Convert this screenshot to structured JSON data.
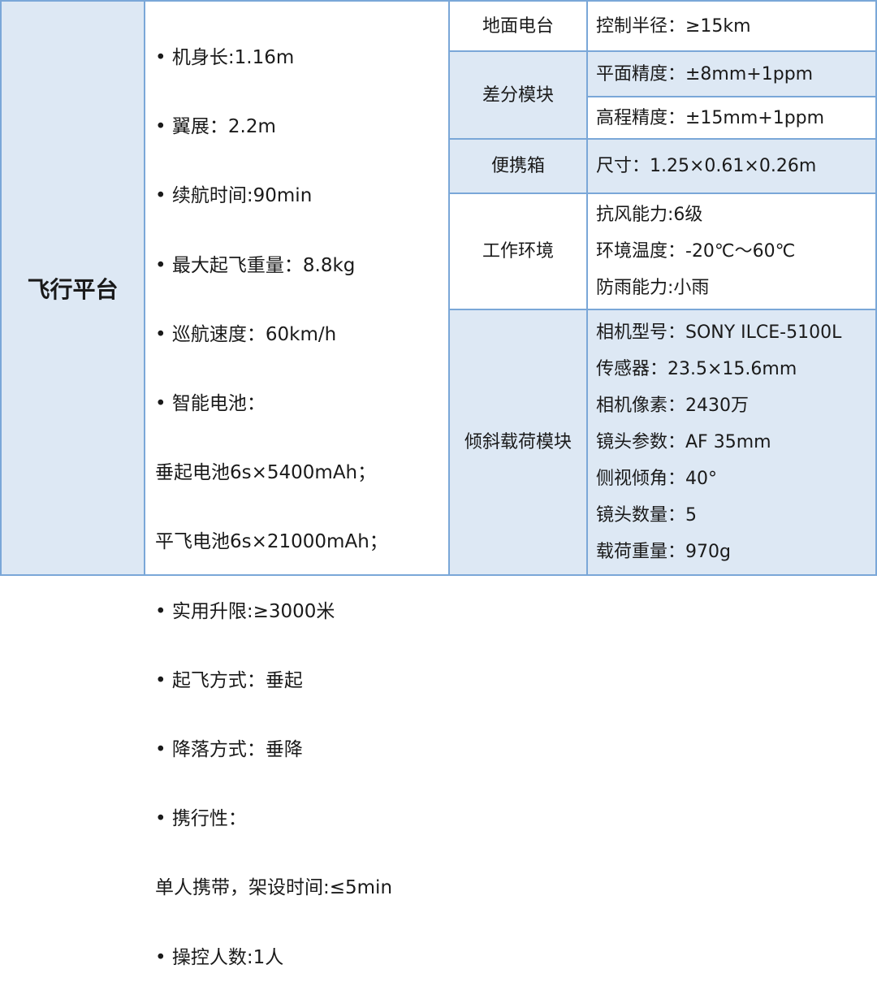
{
  "flight_platform": {
    "label": "飞行平台",
    "items": [
      "• 机身长:1.16m",
      "• 翼展：2.2m",
      "• 续航时间:90min",
      "• 最大起飞重量：8.8kg",
      "• 巡航速度：60km/h",
      "• 智能电池：",
      "  垂起电池6s×5400mAh；",
      "  平飞电池6s×21000mAh；",
      "• 实用升限:≥3000米",
      "• 起飞方式：垂起",
      "• 降落方式：垂降",
      "• 携行性：",
      "   单人携带，架设时间:≤5min",
      "• 操控人数:1人"
    ]
  },
  "rows": [
    {
      "label": "地面电台",
      "values": [
        "控制半径：≥15km"
      ]
    },
    {
      "label": "差分模块",
      "values": [
        "平面精度：±8mm+1ppm",
        "高程精度：±15mm+1ppm"
      ]
    },
    {
      "label": "便携箱",
      "values": [
        "尺寸：1.25×0.61×0.26m"
      ]
    },
    {
      "label": "工作环境",
      "values": [
        "抗风能力:6级",
        "环境温度：-20℃～60℃",
        "防雨能力:小雨"
      ]
    },
    {
      "label": "倾斜载荷模块",
      "values": [
        "相机型号：SONY ILCE-5100L",
        "传感器：23.5×15.6mm",
        "相机像素：2430万",
        "镜头参数：AF 35mm",
        "侧视倾角：40°",
        "镜头数量：5",
        "载荷重量：970g"
      ]
    }
  ],
  "colors": {
    "border": "#7aa7d8",
    "shade": "#dde8f4"
  }
}
